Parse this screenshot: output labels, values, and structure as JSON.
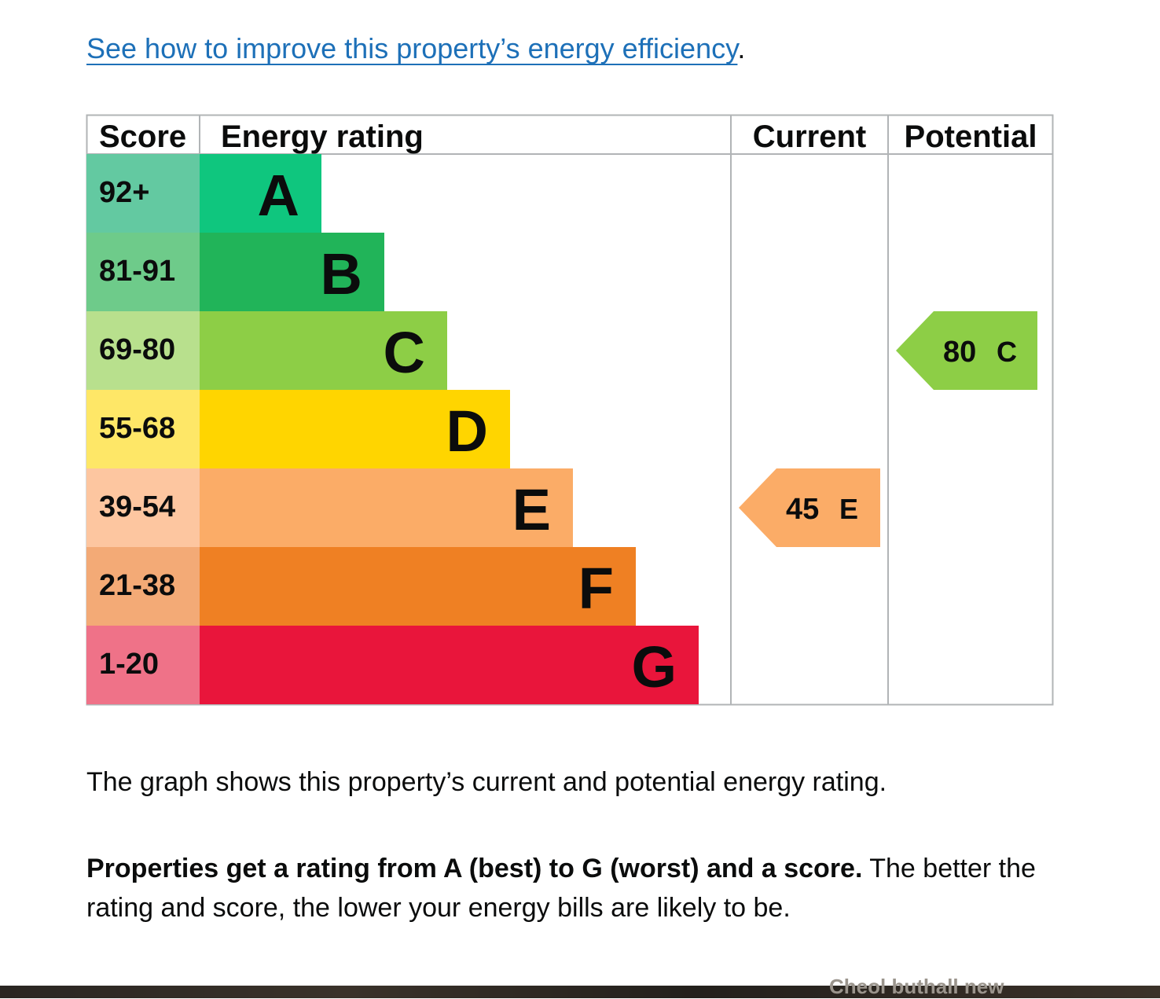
{
  "link": {
    "text": "See how to improve this property’s energy efficiency",
    "suffix": "."
  },
  "chart_data": {
    "type": "table",
    "headers": {
      "score": "Score",
      "rating": "Energy rating",
      "current": "Current",
      "potential": "Potential"
    },
    "bands": [
      {
        "letter": "A",
        "range": "92+",
        "band_color": "#0fc67e",
        "score_color": "#63c9a1"
      },
      {
        "letter": "B",
        "range": "81-91",
        "band_color": "#21b459",
        "score_color": "#6ecb8a"
      },
      {
        "letter": "C",
        "range": "69-80",
        "band_color": "#8dce46",
        "score_color": "#b8e08d"
      },
      {
        "letter": "D",
        "range": "55-68",
        "band_color": "#ffd500",
        "score_color": "#fee767"
      },
      {
        "letter": "E",
        "range": "39-54",
        "band_color": "#fbac67",
        "score_color": "#fdc6a0"
      },
      {
        "letter": "F",
        "range": "21-38",
        "band_color": "#ef8023",
        "score_color": "#f3aa76"
      },
      {
        "letter": "G",
        "range": "1-20",
        "band_color": "#e9153b",
        "score_color": "#ef7288"
      }
    ],
    "current": {
      "score": 45,
      "letter": "E"
    },
    "potential": {
      "score": 80,
      "letter": "C"
    },
    "grid_color": "#b1b4b6"
  },
  "paragraph1": "The graph shows this property’s current and potential energy rating.",
  "paragraph2": {
    "bold": "Properties get a rating from A (best) to G (worst) and a score.",
    "rest": " The better the rating and score, the lower your energy bills are likely to be."
  },
  "footer_partial": "Cheol buthall new"
}
